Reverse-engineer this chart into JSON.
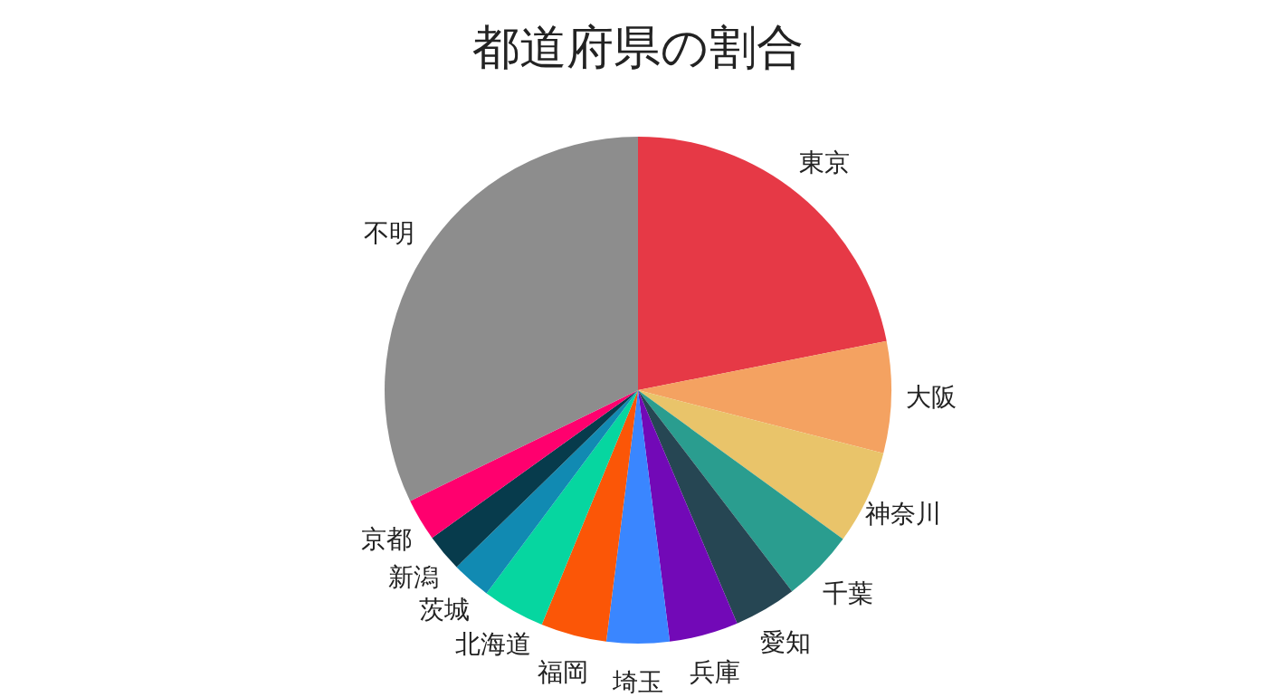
{
  "chart_data": {
    "type": "pie",
    "title": "都道府県の割合",
    "categories": [
      "東京",
      "大阪",
      "神奈川",
      "千葉",
      "愛知",
      "兵庫",
      "埼玉",
      "福岡",
      "北海道",
      "茨城",
      "新潟",
      "京都",
      "不明"
    ],
    "values": [
      21.9,
      7.1,
      6.0,
      4.6,
      4.0,
      4.4,
      4.0,
      4.2,
      4.0,
      2.5,
      2.4,
      2.7,
      32.2
    ],
    "colors": [
      "#e63946",
      "#f4a261",
      "#e9c46a",
      "#2a9d8f",
      "#264653",
      "#7209b7",
      "#3a86ff",
      "#fb5607",
      "#06d6a0",
      "#118ab2",
      "#073b4c",
      "#ff006e",
      "#8d8d8d"
    ]
  }
}
